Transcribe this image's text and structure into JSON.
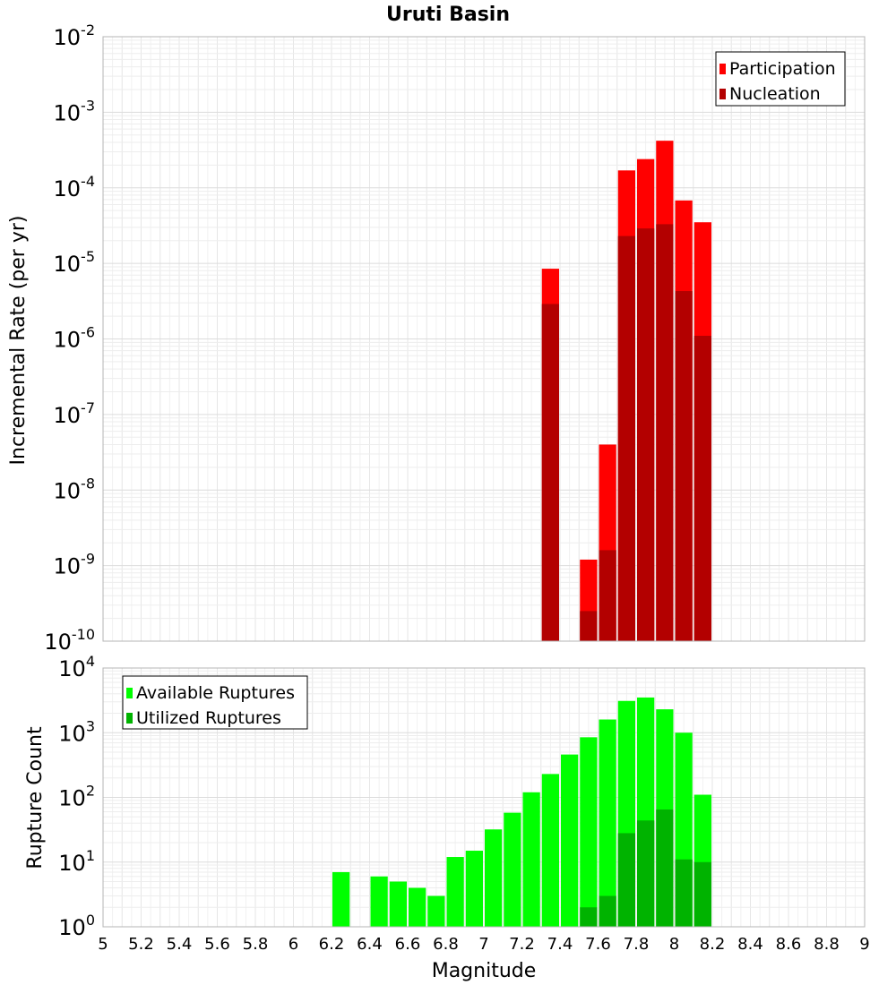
{
  "chart_data": [
    {
      "type": "bar",
      "title": "Uruti Basin",
      "xlabel": "",
      "ylabel": "Incremental Rate (per yr)",
      "yscale": "log",
      "ylim_exp": [
        -10,
        -2
      ],
      "xlim": [
        5,
        9
      ],
      "grid": true,
      "legend_position": "top-right",
      "x": [
        7.35,
        7.55,
        7.65,
        7.75,
        7.85,
        7.95,
        8.05,
        8.15
      ],
      "series": [
        {
          "name": "Participation",
          "color": "#ff0000",
          "values": [
            8.5e-06,
            1.2e-09,
            4e-08,
            0.00017,
            0.00024,
            0.00042,
            6.8e-05,
            3.5e-05
          ]
        },
        {
          "name": "Nucleation",
          "color": "#b30000",
          "values": [
            2.9e-06,
            2.5e-10,
            1.6e-09,
            2.3e-05,
            2.9e-05,
            3.3e-05,
            4.3e-06,
            1.1e-06
          ]
        }
      ]
    },
    {
      "type": "bar",
      "title": "",
      "xlabel": "Magnitude",
      "ylabel": "Rupture Count",
      "yscale": "log",
      "ylim_exp": [
        0,
        4
      ],
      "xlim": [
        5,
        9
      ],
      "xticks": [
        "5",
        "5.2",
        "5.4",
        "5.6",
        "5.8",
        "6",
        "6.2",
        "6.4",
        "6.6",
        "6.8",
        "7",
        "7.2",
        "7.4",
        "7.6",
        "7.8",
        "8",
        "8.2",
        "8.4",
        "8.6",
        "8.8",
        "9"
      ],
      "grid": true,
      "legend_position": "top-left",
      "series": [
        {
          "name": "Available Ruptures",
          "color": "#00ff00",
          "x": [
            6.25,
            6.45,
            6.55,
            6.65,
            6.75,
            6.85,
            6.95,
            7.05,
            7.15,
            7.25,
            7.35,
            7.45,
            7.55,
            7.65,
            7.75,
            7.85,
            7.95,
            8.05,
            8.15
          ],
          "values": [
            7,
            6,
            5,
            4,
            3,
            12,
            15,
            32,
            58,
            120,
            230,
            460,
            850,
            1600,
            3100,
            3500,
            2300,
            1000,
            110
          ]
        },
        {
          "name": "Utilized Ruptures",
          "color": "#00b300",
          "x": [
            7.35,
            7.55,
            7.65,
            7.75,
            7.85,
            7.95,
            8.05,
            8.15
          ],
          "values": [
            1,
            2,
            3,
            28,
            44,
            65,
            11,
            10
          ]
        }
      ]
    }
  ]
}
